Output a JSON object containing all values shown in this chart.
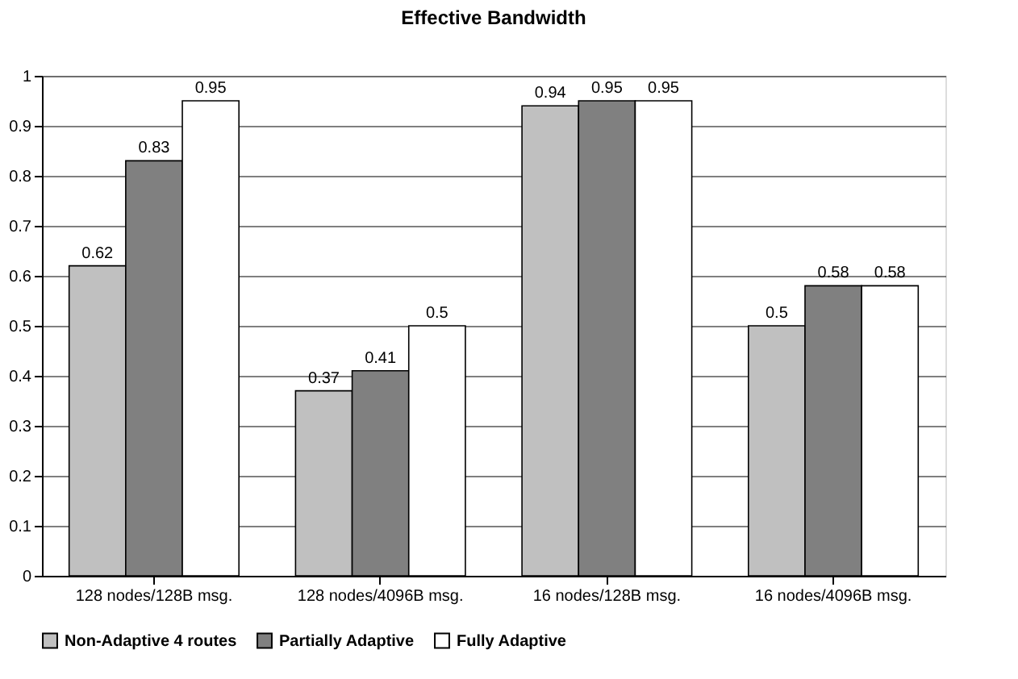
{
  "chart_data": {
    "type": "bar",
    "title": "Effective Bandwidth",
    "categories": [
      "128 nodes/128B msg.",
      "128 nodes/4096B msg.",
      "16 nodes/128B msg.",
      "16 nodes/4096B msg."
    ],
    "series": [
      {
        "name": "Non-Adaptive 4 routes",
        "color": "#c0c0c0",
        "values": [
          0.62,
          0.37,
          0.94,
          0.5
        ]
      },
      {
        "name": "Partially Adaptive",
        "color": "#808080",
        "values": [
          0.83,
          0.41,
          0.95,
          0.58
        ]
      },
      {
        "name": "Fully Adaptive",
        "color": "#ffffff",
        "values": [
          0.95,
          0.5,
          0.95,
          0.58
        ]
      }
    ],
    "ylim": [
      0,
      1
    ],
    "yticks": [
      0,
      0.1,
      0.2,
      0.3,
      0.4,
      0.5,
      0.6,
      0.7,
      0.8,
      0.9,
      1
    ],
    "grid": "y",
    "legend": "bottom",
    "data_labels": true
  }
}
